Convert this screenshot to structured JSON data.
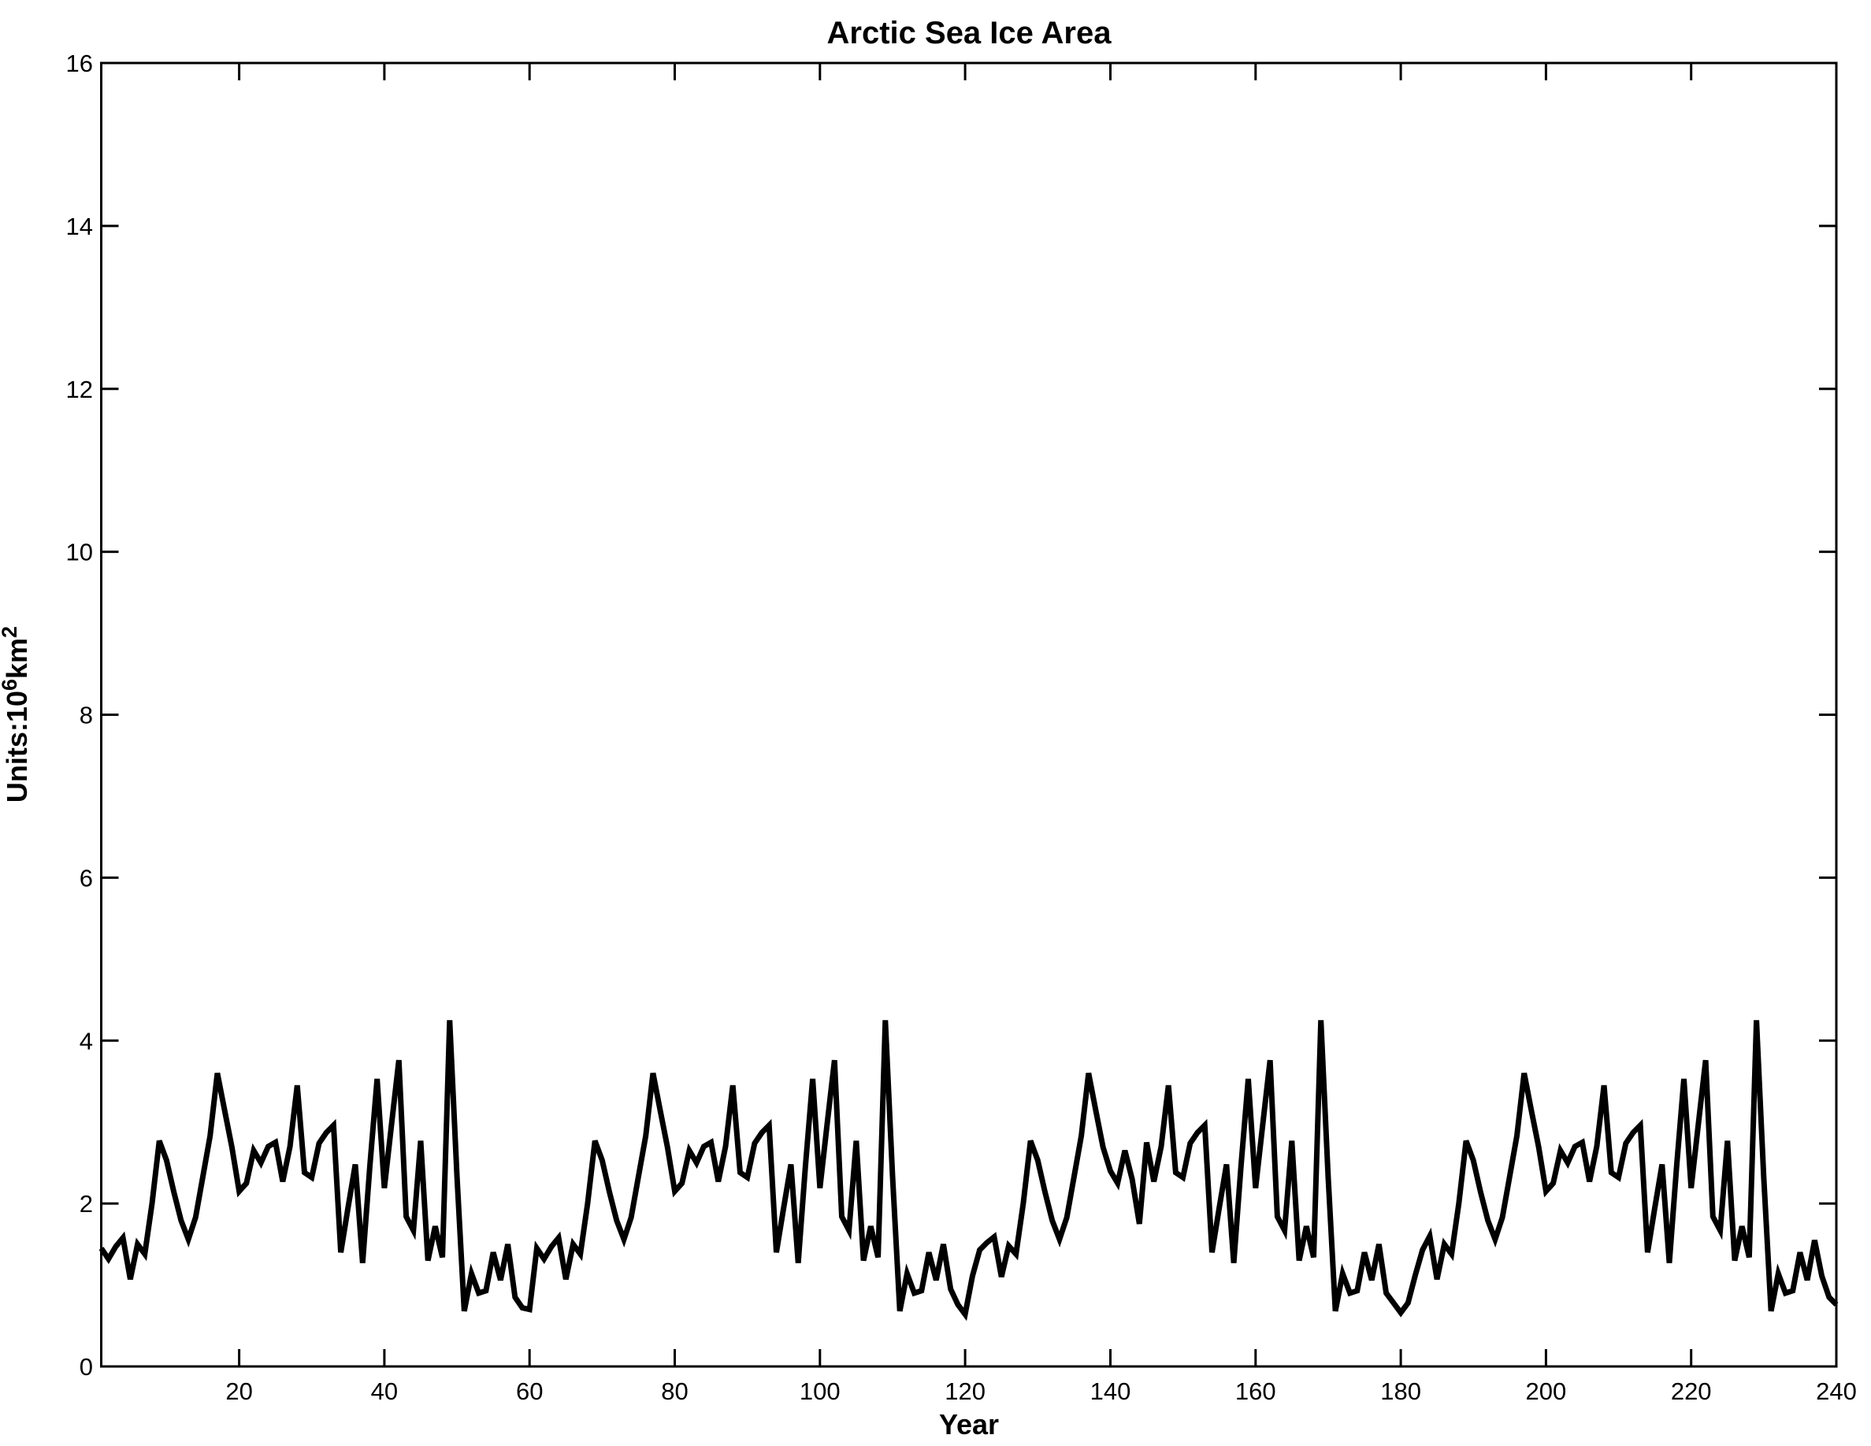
{
  "figure": {
    "title": "Arctic Sea Ice Area",
    "xlabel": "Year",
    "ylabel_base1": "Units:10",
    "ylabel_sup1": "6",
    "ylabel_base2": "km",
    "ylabel_sup2": "2",
    "background": "#ffffff",
    "axis_color": "#000000",
    "line_color": "#000000"
  },
  "chart_data": {
    "type": "line",
    "title": "Arctic Sea Ice Area",
    "xlabel": "Year",
    "ylabel": "Units:10^6 km^2",
    "legend": "none",
    "grid": false,
    "xlim": [
      1,
      240
    ],
    "ylim": [
      0,
      16
    ],
    "x_ticks": [
      20,
      40,
      60,
      80,
      100,
      120,
      140,
      160,
      180,
      200,
      220,
      240
    ],
    "y_ticks": [
      0,
      2,
      4,
      6,
      8,
      10,
      12,
      14,
      16
    ],
    "x_start": 1,
    "x_step": 1,
    "values": [
      1.45,
      1.32,
      1.47,
      1.58,
      1.07,
      1.5,
      1.38,
      2.0,
      2.77,
      2.53,
      2.14,
      1.79,
      1.56,
      1.83,
      2.33,
      2.83,
      3.6,
      3.14,
      2.69,
      2.15,
      2.25,
      2.65,
      2.5,
      2.7,
      2.75,
      2.27,
      2.7,
      3.45,
      2.38,
      2.32,
      2.74,
      2.87,
      2.96,
      1.4,
      1.95,
      2.48,
      1.27,
      2.46,
      3.53,
      2.19,
      2.98,
      3.76,
      1.84,
      1.67,
      2.77,
      1.3,
      1.72,
      1.34,
      4.25,
      2.33,
      0.68,
      1.14,
      0.9,
      0.93,
      1.4,
      1.06,
      1.5,
      0.85,
      0.72,
      0.7,
      1.45,
      1.32,
      1.47,
      1.58,
      1.07,
      1.5,
      1.38,
      2.0,
      2.77,
      2.53,
      2.14,
      1.79,
      1.56,
      1.83,
      2.33,
      2.83,
      3.6,
      3.14,
      2.69,
      2.15,
      2.25,
      2.65,
      2.5,
      2.7,
      2.75,
      2.27,
      2.7,
      3.45,
      2.38,
      2.32,
      2.74,
      2.87,
      2.96,
      1.4,
      1.95,
      2.48,
      1.27,
      2.46,
      3.53,
      2.19,
      2.98,
      3.76,
      1.84,
      1.67,
      2.77,
      1.3,
      1.72,
      1.34,
      4.25,
      2.33,
      0.68,
      1.14,
      0.9,
      0.93,
      1.4,
      1.06,
      1.5,
      0.95,
      0.76,
      0.64,
      1.11,
      1.43,
      1.52,
      1.59,
      1.1,
      1.48,
      1.38,
      2.0,
      2.77,
      2.53,
      2.14,
      1.79,
      1.56,
      1.83,
      2.33,
      2.83,
      3.6,
      3.14,
      2.69,
      2.4,
      2.25,
      2.65,
      2.3,
      1.75,
      2.75,
      2.27,
      2.7,
      3.45,
      2.38,
      2.32,
      2.74,
      2.87,
      2.96,
      1.4,
      1.95,
      2.48,
      1.27,
      2.46,
      3.53,
      2.19,
      2.98,
      3.76,
      1.84,
      1.67,
      2.77,
      1.3,
      1.72,
      1.34,
      4.25,
      2.33,
      0.68,
      1.14,
      0.9,
      0.93,
      1.4,
      1.06,
      1.5,
      0.9,
      0.78,
      0.66,
      0.78,
      1.12,
      1.43,
      1.6,
      1.07,
      1.5,
      1.38,
      2.0,
      2.77,
      2.53,
      2.14,
      1.79,
      1.56,
      1.83,
      2.33,
      2.83,
      3.6,
      3.14,
      2.69,
      2.15,
      2.25,
      2.65,
      2.5,
      2.7,
      2.75,
      2.27,
      2.7,
      3.45,
      2.38,
      2.32,
      2.74,
      2.87,
      2.96,
      1.4,
      1.95,
      2.48,
      1.27,
      2.46,
      3.53,
      2.19,
      2.98,
      3.76,
      1.84,
      1.67,
      2.77,
      1.3,
      1.72,
      1.34,
      4.25,
      2.33,
      0.68,
      1.14,
      0.9,
      0.93,
      1.4,
      1.06,
      1.55,
      1.11,
      0.85,
      0.76
    ]
  }
}
